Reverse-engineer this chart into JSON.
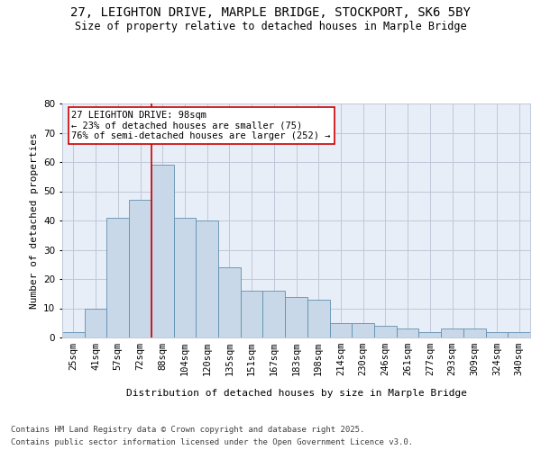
{
  "title_line1": "27, LEIGHTON DRIVE, MARPLE BRIDGE, STOCKPORT, SK6 5BY",
  "title_line2": "Size of property relative to detached houses in Marple Bridge",
  "xlabel": "Distribution of detached houses by size in Marple Bridge",
  "ylabel": "Number of detached properties",
  "categories": [
    "25sqm",
    "41sqm",
    "57sqm",
    "72sqm",
    "88sqm",
    "104sqm",
    "120sqm",
    "135sqm",
    "151sqm",
    "167sqm",
    "183sqm",
    "198sqm",
    "214sqm",
    "230sqm",
    "246sqm",
    "261sqm",
    "277sqm",
    "293sqm",
    "309sqm",
    "324sqm",
    "340sqm"
  ],
  "values": [
    2,
    10,
    41,
    47,
    59,
    41,
    40,
    24,
    16,
    16,
    14,
    13,
    5,
    5,
    4,
    3,
    2,
    3,
    3,
    2,
    2
  ],
  "bar_color": "#c8d8e8",
  "bar_edge_color": "#6090b0",
  "annotation_text": "27 LEIGHTON DRIVE: 98sqm\n← 23% of detached houses are smaller (75)\n76% of semi-detached houses are larger (252) →",
  "annotation_box_color": "#ffffff",
  "annotation_box_edge_color": "#cc0000",
  "annotation_fontsize": 7.5,
  "red_line_color": "#cc0000",
  "ylim": [
    0,
    80
  ],
  "yticks": [
    0,
    10,
    20,
    30,
    40,
    50,
    60,
    70,
    80
  ],
  "grid_color": "#c0c8d8",
  "background_color": "#e8eef8",
  "footer_line1": "Contains HM Land Registry data © Crown copyright and database right 2025.",
  "footer_line2": "Contains public sector information licensed under the Open Government Licence v3.0.",
  "title_fontsize": 10,
  "subtitle_fontsize": 8.5,
  "axis_label_fontsize": 8,
  "tick_fontsize": 7.5,
  "footer_fontsize": 6.5
}
